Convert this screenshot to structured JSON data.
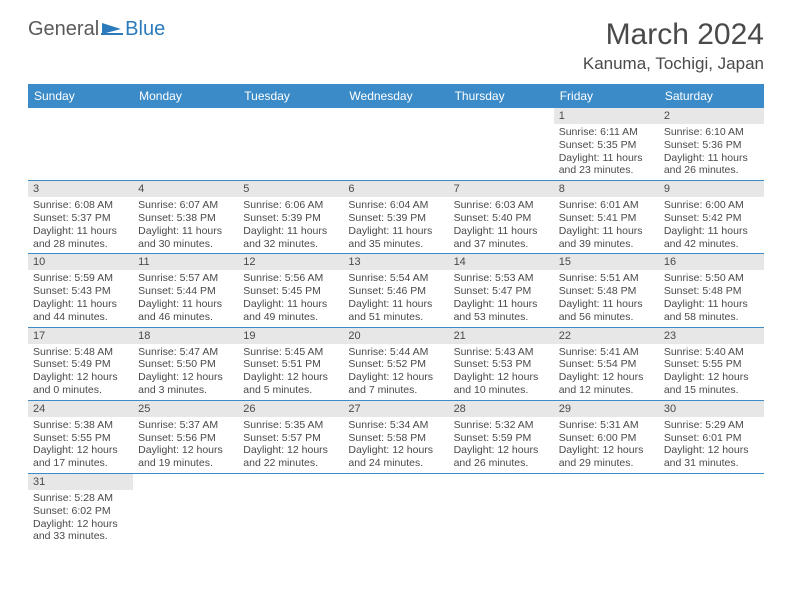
{
  "logo": {
    "word1": "General",
    "word2": "Blue"
  },
  "title": "March 2024",
  "location": "Kanuma, Tochigi, Japan",
  "colors": {
    "header_bg": "#3b8bc9",
    "header_text": "#ffffff",
    "daynum_bg": "#e7e7e7",
    "text": "#4a4a4a",
    "rule": "#3b8bc9",
    "logo_accent": "#2b7bbc"
  },
  "weekdays": [
    "Sunday",
    "Monday",
    "Tuesday",
    "Wednesday",
    "Thursday",
    "Friday",
    "Saturday"
  ],
  "weeks": [
    [
      null,
      null,
      null,
      null,
      null,
      {
        "n": "1",
        "sr": "Sunrise: 6:11 AM",
        "ss": "Sunset: 5:35 PM",
        "dl1": "Daylight: 11 hours",
        "dl2": "and 23 minutes."
      },
      {
        "n": "2",
        "sr": "Sunrise: 6:10 AM",
        "ss": "Sunset: 5:36 PM",
        "dl1": "Daylight: 11 hours",
        "dl2": "and 26 minutes."
      }
    ],
    [
      {
        "n": "3",
        "sr": "Sunrise: 6:08 AM",
        "ss": "Sunset: 5:37 PM",
        "dl1": "Daylight: 11 hours",
        "dl2": "and 28 minutes."
      },
      {
        "n": "4",
        "sr": "Sunrise: 6:07 AM",
        "ss": "Sunset: 5:38 PM",
        "dl1": "Daylight: 11 hours",
        "dl2": "and 30 minutes."
      },
      {
        "n": "5",
        "sr": "Sunrise: 6:06 AM",
        "ss": "Sunset: 5:39 PM",
        "dl1": "Daylight: 11 hours",
        "dl2": "and 32 minutes."
      },
      {
        "n": "6",
        "sr": "Sunrise: 6:04 AM",
        "ss": "Sunset: 5:39 PM",
        "dl1": "Daylight: 11 hours",
        "dl2": "and 35 minutes."
      },
      {
        "n": "7",
        "sr": "Sunrise: 6:03 AM",
        "ss": "Sunset: 5:40 PM",
        "dl1": "Daylight: 11 hours",
        "dl2": "and 37 minutes."
      },
      {
        "n": "8",
        "sr": "Sunrise: 6:01 AM",
        "ss": "Sunset: 5:41 PM",
        "dl1": "Daylight: 11 hours",
        "dl2": "and 39 minutes."
      },
      {
        "n": "9",
        "sr": "Sunrise: 6:00 AM",
        "ss": "Sunset: 5:42 PM",
        "dl1": "Daylight: 11 hours",
        "dl2": "and 42 minutes."
      }
    ],
    [
      {
        "n": "10",
        "sr": "Sunrise: 5:59 AM",
        "ss": "Sunset: 5:43 PM",
        "dl1": "Daylight: 11 hours",
        "dl2": "and 44 minutes."
      },
      {
        "n": "11",
        "sr": "Sunrise: 5:57 AM",
        "ss": "Sunset: 5:44 PM",
        "dl1": "Daylight: 11 hours",
        "dl2": "and 46 minutes."
      },
      {
        "n": "12",
        "sr": "Sunrise: 5:56 AM",
        "ss": "Sunset: 5:45 PM",
        "dl1": "Daylight: 11 hours",
        "dl2": "and 49 minutes."
      },
      {
        "n": "13",
        "sr": "Sunrise: 5:54 AM",
        "ss": "Sunset: 5:46 PM",
        "dl1": "Daylight: 11 hours",
        "dl2": "and 51 minutes."
      },
      {
        "n": "14",
        "sr": "Sunrise: 5:53 AM",
        "ss": "Sunset: 5:47 PM",
        "dl1": "Daylight: 11 hours",
        "dl2": "and 53 minutes."
      },
      {
        "n": "15",
        "sr": "Sunrise: 5:51 AM",
        "ss": "Sunset: 5:48 PM",
        "dl1": "Daylight: 11 hours",
        "dl2": "and 56 minutes."
      },
      {
        "n": "16",
        "sr": "Sunrise: 5:50 AM",
        "ss": "Sunset: 5:48 PM",
        "dl1": "Daylight: 11 hours",
        "dl2": "and 58 minutes."
      }
    ],
    [
      {
        "n": "17",
        "sr": "Sunrise: 5:48 AM",
        "ss": "Sunset: 5:49 PM",
        "dl1": "Daylight: 12 hours",
        "dl2": "and 0 minutes."
      },
      {
        "n": "18",
        "sr": "Sunrise: 5:47 AM",
        "ss": "Sunset: 5:50 PM",
        "dl1": "Daylight: 12 hours",
        "dl2": "and 3 minutes."
      },
      {
        "n": "19",
        "sr": "Sunrise: 5:45 AM",
        "ss": "Sunset: 5:51 PM",
        "dl1": "Daylight: 12 hours",
        "dl2": "and 5 minutes."
      },
      {
        "n": "20",
        "sr": "Sunrise: 5:44 AM",
        "ss": "Sunset: 5:52 PM",
        "dl1": "Daylight: 12 hours",
        "dl2": "and 7 minutes."
      },
      {
        "n": "21",
        "sr": "Sunrise: 5:43 AM",
        "ss": "Sunset: 5:53 PM",
        "dl1": "Daylight: 12 hours",
        "dl2": "and 10 minutes."
      },
      {
        "n": "22",
        "sr": "Sunrise: 5:41 AM",
        "ss": "Sunset: 5:54 PM",
        "dl1": "Daylight: 12 hours",
        "dl2": "and 12 minutes."
      },
      {
        "n": "23",
        "sr": "Sunrise: 5:40 AM",
        "ss": "Sunset: 5:55 PM",
        "dl1": "Daylight: 12 hours",
        "dl2": "and 15 minutes."
      }
    ],
    [
      {
        "n": "24",
        "sr": "Sunrise: 5:38 AM",
        "ss": "Sunset: 5:55 PM",
        "dl1": "Daylight: 12 hours",
        "dl2": "and 17 minutes."
      },
      {
        "n": "25",
        "sr": "Sunrise: 5:37 AM",
        "ss": "Sunset: 5:56 PM",
        "dl1": "Daylight: 12 hours",
        "dl2": "and 19 minutes."
      },
      {
        "n": "26",
        "sr": "Sunrise: 5:35 AM",
        "ss": "Sunset: 5:57 PM",
        "dl1": "Daylight: 12 hours",
        "dl2": "and 22 minutes."
      },
      {
        "n": "27",
        "sr": "Sunrise: 5:34 AM",
        "ss": "Sunset: 5:58 PM",
        "dl1": "Daylight: 12 hours",
        "dl2": "and 24 minutes."
      },
      {
        "n": "28",
        "sr": "Sunrise: 5:32 AM",
        "ss": "Sunset: 5:59 PM",
        "dl1": "Daylight: 12 hours",
        "dl2": "and 26 minutes."
      },
      {
        "n": "29",
        "sr": "Sunrise: 5:31 AM",
        "ss": "Sunset: 6:00 PM",
        "dl1": "Daylight: 12 hours",
        "dl2": "and 29 minutes."
      },
      {
        "n": "30",
        "sr": "Sunrise: 5:29 AM",
        "ss": "Sunset: 6:01 PM",
        "dl1": "Daylight: 12 hours",
        "dl2": "and 31 minutes."
      }
    ],
    [
      {
        "n": "31",
        "sr": "Sunrise: 5:28 AM",
        "ss": "Sunset: 6:02 PM",
        "dl1": "Daylight: 12 hours",
        "dl2": "and 33 minutes."
      },
      null,
      null,
      null,
      null,
      null,
      null
    ]
  ]
}
